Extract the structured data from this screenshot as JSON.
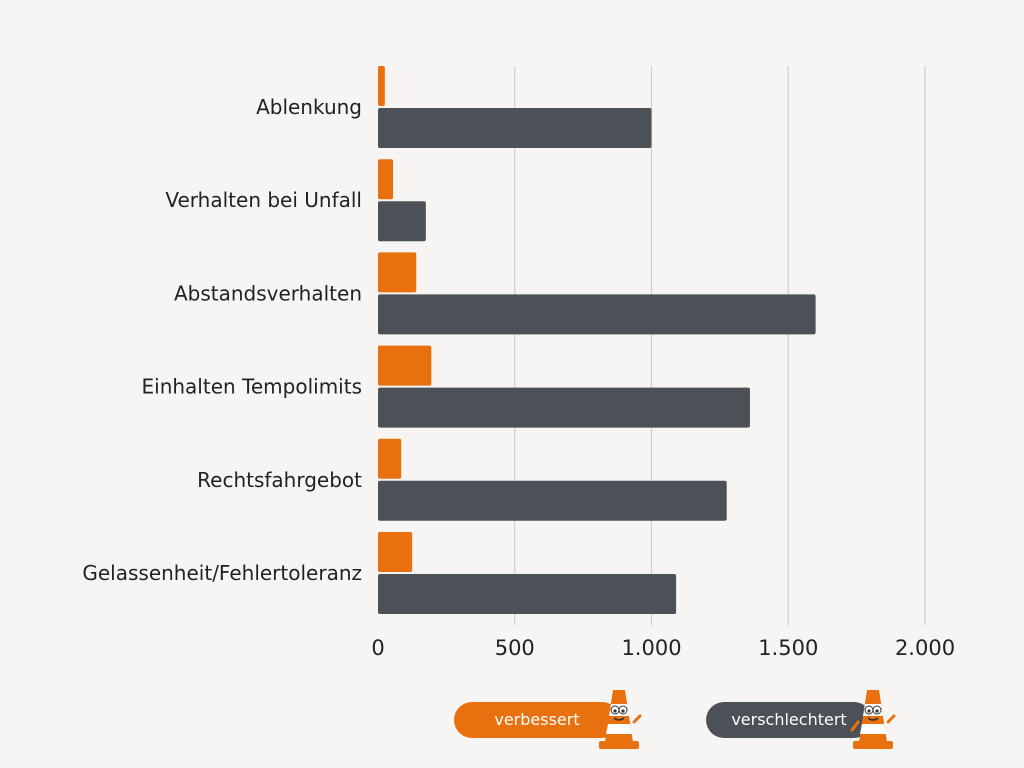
{
  "chart_data": {
    "type": "bar",
    "orientation": "horizontal",
    "categories": [
      "Ablenkung",
      "Verhalten bei Unfall",
      "Abstandsverhalten",
      "Einhalten Tempolimits",
      "Rechtsfahrgebot",
      "Gelassenheit/Fehlertoleranz"
    ],
    "series": [
      {
        "name": "verbessert",
        "color": "#e8700f",
        "values": [
          25,
          55,
          140,
          195,
          85,
          125
        ]
      },
      {
        "name": "verschlechtert",
        "color": "#4b5156",
        "values": [
          1000,
          175,
          1600,
          1360,
          1275,
          1090
        ]
      }
    ],
    "xlim": [
      0,
      2000
    ],
    "xticks": [
      0,
      500,
      1000,
      1500,
      2000
    ],
    "xtick_labels": [
      "0",
      "500",
      "1.000",
      "1.500",
      "2.000"
    ],
    "grid": true,
    "legend_placement": "bottom",
    "legend_icon": "traffic-cone-mascot-icon"
  }
}
